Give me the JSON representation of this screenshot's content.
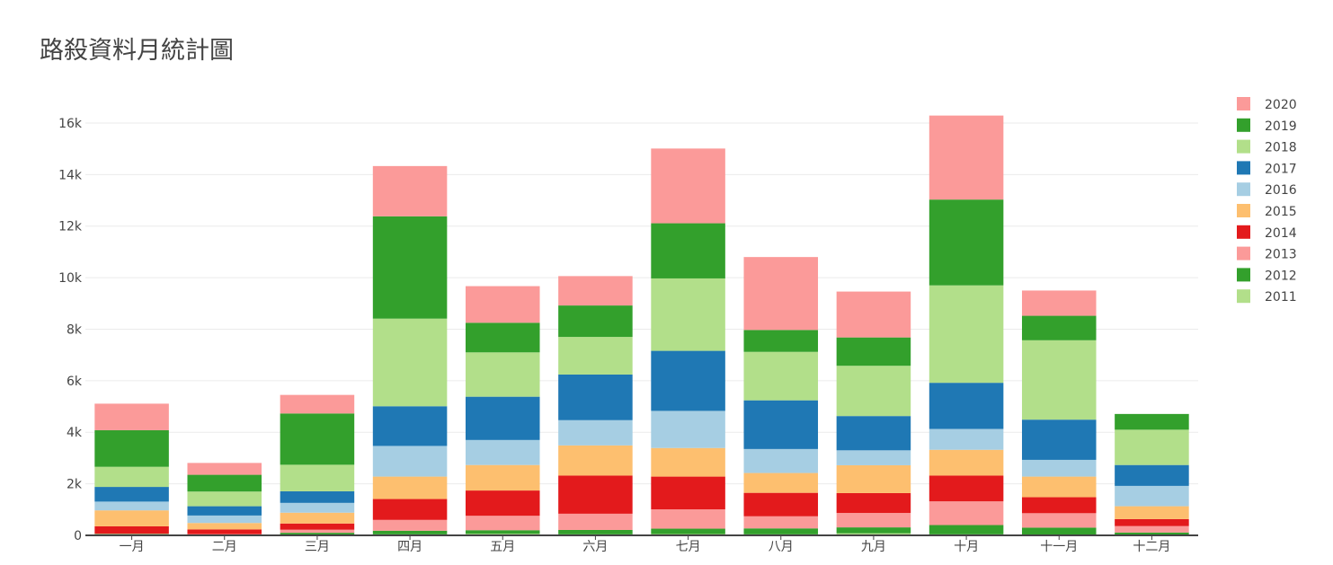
{
  "chart_data": {
    "type": "bar",
    "stacked": true,
    "title": "路殺資料月統計圖",
    "xlabel": "",
    "ylabel": "",
    "categories": [
      "一月",
      "二月",
      "三月",
      "四月",
      "五月",
      "六月",
      "七月",
      "八月",
      "九月",
      "十月",
      "十一月",
      "十二月"
    ],
    "ylim": [
      0,
      16800
    ],
    "yticks": [
      0,
      2000,
      4000,
      6000,
      8000,
      10000,
      12000,
      14000,
      16000
    ],
    "ytick_labels": [
      "0",
      "2k",
      "4k",
      "6k",
      "8k",
      "10k",
      "12k",
      "14k",
      "16k"
    ],
    "grid": true,
    "legend_position": "right",
    "series": [
      {
        "name": "2011",
        "color": "#b2df8a",
        "values": [
          30,
          10,
          30,
          40,
          60,
          40,
          50,
          40,
          80,
          40,
          30,
          20
        ]
      },
      {
        "name": "2012",
        "color": "#33a02c",
        "values": [
          20,
          20,
          70,
          140,
          140,
          170,
          210,
          230,
          230,
          360,
          270,
          90
        ]
      },
      {
        "name": "2013",
        "color": "#fb9a99",
        "values": [
          20,
          20,
          120,
          420,
          560,
          630,
          750,
          470,
          560,
          920,
          560,
          250
        ]
      },
      {
        "name": "2014",
        "color": "#e31a1c",
        "values": [
          280,
          180,
          240,
          810,
          980,
          1480,
          1270,
          910,
          770,
          1000,
          620,
          270
        ]
      },
      {
        "name": "2015",
        "color": "#fdbf6f",
        "values": [
          620,
          250,
          420,
          870,
          990,
          1170,
          1110,
          770,
          1080,
          1000,
          800,
          500
        ]
      },
      {
        "name": "2016",
        "color": "#a6cee3",
        "values": [
          340,
          290,
          380,
          1190,
          970,
          980,
          1440,
          930,
          580,
          810,
          650,
          790
        ]
      },
      {
        "name": "2017",
        "color": "#1f78b4",
        "values": [
          570,
          360,
          450,
          1540,
          1680,
          1770,
          2330,
          1890,
          1330,
          1790,
          1560,
          810
        ]
      },
      {
        "name": "2018",
        "color": "#b2df8a",
        "values": [
          780,
          570,
          1030,
          3400,
          1720,
          1460,
          2810,
          1880,
          1950,
          3780,
          3080,
          1370
        ]
      },
      {
        "name": "2019",
        "color": "#33a02c",
        "values": [
          1420,
          650,
          1990,
          3970,
          1150,
          1220,
          2140,
          850,
          1100,
          3330,
          950,
          610
        ]
      },
      {
        "name": "2020",
        "color": "#fb9a99",
        "values": [
          1030,
          460,
          720,
          1950,
          1420,
          1140,
          2900,
          2830,
          1780,
          3260,
          980,
          0
        ]
      }
    ]
  }
}
